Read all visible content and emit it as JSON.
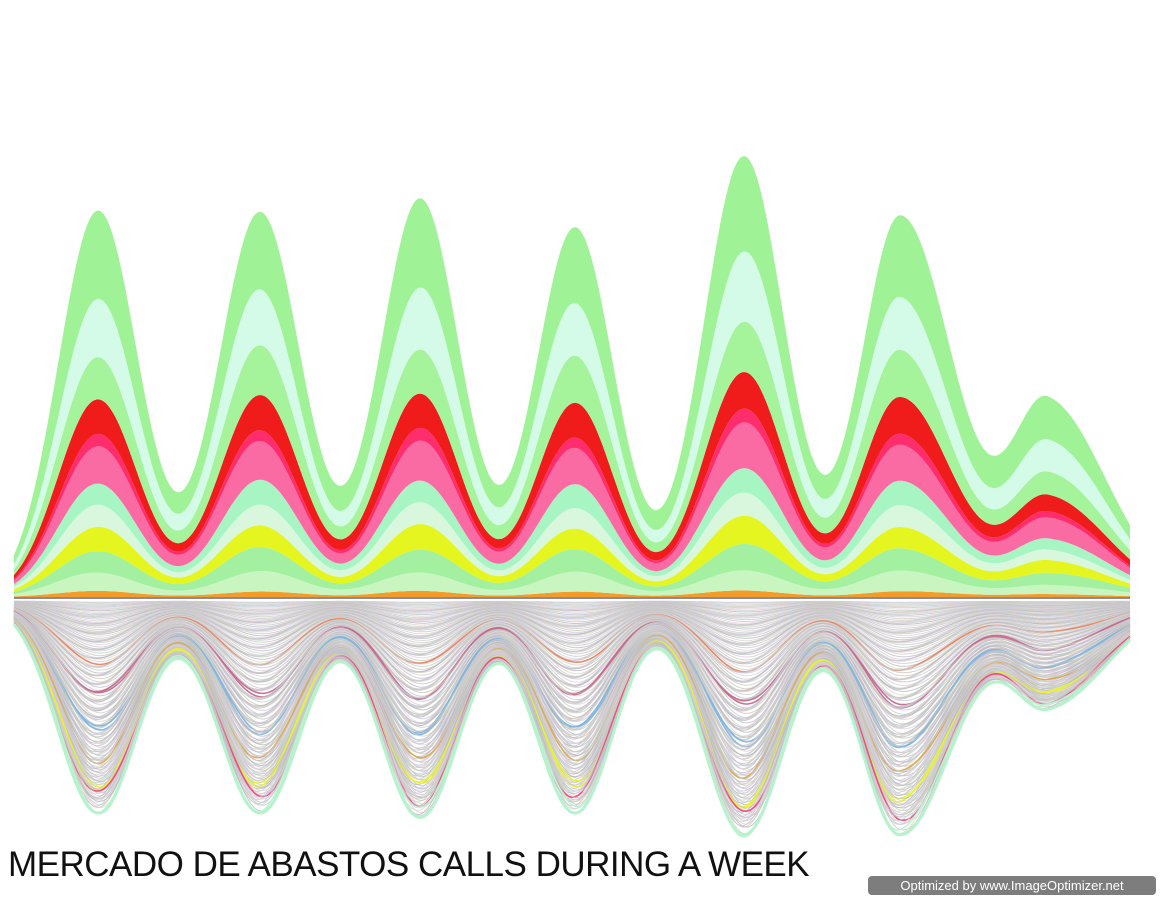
{
  "title": "MERCADO DE ABASTOS CALLS DURING A WEEK",
  "watermark": "Optimized by www.ImageOptimizer.net",
  "chart_data": {
    "type": "area",
    "layout": "mirrored streamgraph",
    "title": "MERCADO DE ABASTOS CALLS DURING A WEEK",
    "periods": 7,
    "grid": false,
    "legend": "none",
    "axes_shown": false,
    "upper_peak_values": [
      1.0,
      1.01,
      1.03,
      0.97,
      1.14,
      1.0,
      0.5
    ],
    "lower_peak_values": [
      0.98,
      0.98,
      1.0,
      0.98,
      1.08,
      1.08,
      0.48
    ],
    "upper_layers": [
      {
        "color": "#f39c2a",
        "share": 0.015
      },
      {
        "color": "#c9f5c0",
        "share": 0.05
      },
      {
        "color": "#a3f0a0",
        "share": 0.06
      },
      {
        "color": "#e4f51f",
        "share": 0.06
      },
      {
        "color": "#d8f7dd",
        "share": 0.055
      },
      {
        "color": "#a8f5c4",
        "share": 0.06
      },
      {
        "color": "#fa6ba3",
        "share": 0.1
      },
      {
        "color": "#ff2d6d",
        "share": 0.03
      },
      {
        "color": "#f01c1c",
        "share": 0.09
      },
      {
        "color": "#a5f39a",
        "share": 0.12
      },
      {
        "color": "#d4fae8",
        "share": 0.15
      },
      {
        "color": "#9ff396",
        "share": 0.215
      }
    ],
    "lower_layer_count": 170,
    "lower_palette": [
      "#c9c9cf",
      "#b9bdcc",
      "#d8c9d2",
      "#bcd0c4",
      "#cfc2b4",
      "#c3c6dd",
      "#e1cfd9",
      "#bfc9bd",
      "#b7b3c1",
      "#dcd3c6"
    ],
    "lower_highlights": [
      {
        "position": 0.3,
        "color": "#e8845a"
      },
      {
        "position": 0.45,
        "color": "#c86b8c"
      },
      {
        "position": 0.62,
        "color": "#7fb6e0"
      },
      {
        "position": 0.76,
        "color": "#e0a848"
      },
      {
        "position": 0.88,
        "color": "#e8f230"
      },
      {
        "position": 0.94,
        "color": "#f0447a"
      },
      {
        "position": 1.0,
        "color": "#b8f5cf"
      }
    ]
  }
}
